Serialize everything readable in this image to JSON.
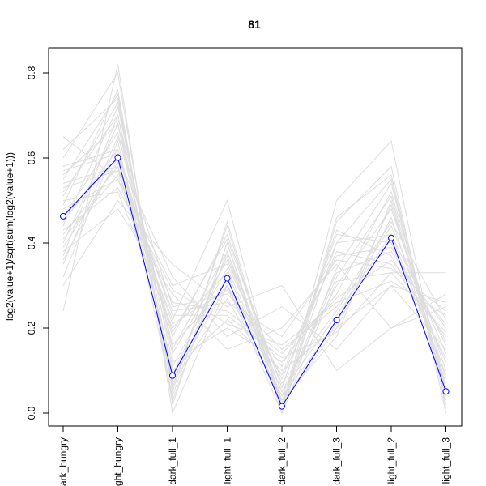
{
  "chart_data": {
    "type": "line",
    "title": "81",
    "xlabel": "",
    "ylabel": "log2(value+1)/sqrt(sum(log2(value+1)))",
    "categories": [
      "dark_hungry",
      "light_hungry",
      "dark_full_1",
      "light_full_1",
      "dark_full_2",
      "dark_full_3",
      "light_full_2",
      "light_full_3"
    ],
    "ylim": [
      0,
      0.8
    ],
    "yticks": [
      0.0,
      0.2,
      0.4,
      0.6,
      0.8
    ],
    "ytick_labels": [
      "0.0",
      "0.2",
      "0.4",
      "0.6",
      "0.8"
    ],
    "grid": false,
    "highlight_series": {
      "color": "#0000ff",
      "values": [
        0.463,
        0.601,
        0.088,
        0.317,
        0.016,
        0.219,
        0.412,
        0.051
      ]
    },
    "background_series_color": "#dddddd",
    "background_series": [
      [
        0.46,
        0.6,
        0.09,
        0.32,
        0.02,
        0.22,
        0.41,
        0.05
      ],
      [
        0.24,
        0.82,
        0.0,
        0.3,
        0.0,
        0.31,
        0.33,
        0.33
      ],
      [
        0.65,
        0.55,
        0.22,
        0.5,
        0.01,
        0.5,
        0.64,
        0.01
      ],
      [
        0.3,
        0.5,
        0.35,
        0.25,
        0.3,
        0.1,
        0.2,
        0.25
      ],
      [
        0.55,
        0.75,
        0.05,
        0.45,
        0.02,
        0.4,
        0.55,
        0.02
      ],
      [
        0.38,
        0.48,
        0.28,
        0.15,
        0.2,
        0.35,
        0.2,
        0.28
      ],
      [
        0.52,
        0.7,
        0.15,
        0.38,
        0.05,
        0.3,
        0.48,
        0.1
      ],
      [
        0.42,
        0.58,
        0.1,
        0.22,
        0.1,
        0.2,
        0.3,
        0.15
      ],
      [
        0.6,
        0.8,
        0.02,
        0.4,
        0.0,
        0.45,
        0.58,
        0.0
      ],
      [
        0.35,
        0.65,
        0.25,
        0.28,
        0.15,
        0.25,
        0.45,
        0.22
      ],
      [
        0.48,
        0.55,
        0.3,
        0.35,
        0.08,
        0.38,
        0.35,
        0.18
      ],
      [
        0.4,
        0.68,
        0.08,
        0.3,
        0.03,
        0.18,
        0.5,
        0.05
      ],
      [
        0.58,
        0.62,
        0.18,
        0.42,
        0.06,
        0.42,
        0.4,
        0.12
      ],
      [
        0.44,
        0.72,
        0.12,
        0.2,
        0.12,
        0.28,
        0.52,
        0.08
      ],
      [
        0.5,
        0.52,
        0.2,
        0.33,
        0.04,
        0.33,
        0.38,
        0.2
      ],
      [
        0.36,
        0.6,
        0.32,
        0.18,
        0.25,
        0.15,
        0.3,
        0.26
      ],
      [
        0.62,
        0.74,
        0.06,
        0.44,
        0.01,
        0.46,
        0.56,
        0.03
      ],
      [
        0.46,
        0.66,
        0.14,
        0.36,
        0.07,
        0.24,
        0.44,
        0.14
      ],
      [
        0.54,
        0.58,
        0.24,
        0.26,
        0.18,
        0.36,
        0.34,
        0.24
      ],
      [
        0.32,
        0.64,
        0.04,
        0.4,
        0.02,
        0.2,
        0.46,
        0.06
      ],
      [
        0.56,
        0.68,
        0.16,
        0.3,
        0.09,
        0.4,
        0.42,
        0.16
      ],
      [
        0.41,
        0.56,
        0.26,
        0.24,
        0.14,
        0.27,
        0.36,
        0.21
      ],
      [
        0.49,
        0.76,
        0.03,
        0.38,
        0.01,
        0.34,
        0.54,
        0.04
      ],
      [
        0.45,
        0.62,
        0.11,
        0.34,
        0.05,
        0.23,
        0.42,
        0.09
      ],
      [
        0.53,
        0.57,
        0.21,
        0.29,
        0.11,
        0.37,
        0.39,
        0.17
      ],
      [
        0.37,
        0.7,
        0.07,
        0.27,
        0.04,
        0.21,
        0.49,
        0.07
      ],
      [
        0.57,
        0.61,
        0.19,
        0.41,
        0.06,
        0.43,
        0.37,
        0.13
      ],
      [
        0.43,
        0.53,
        0.29,
        0.21,
        0.16,
        0.26,
        0.31,
        0.23
      ],
      [
        0.51,
        0.73,
        0.09,
        0.37,
        0.03,
        0.32,
        0.51,
        0.06
      ],
      [
        0.39,
        0.59,
        0.23,
        0.23,
        0.13,
        0.19,
        0.33,
        0.19
      ]
    ]
  }
}
